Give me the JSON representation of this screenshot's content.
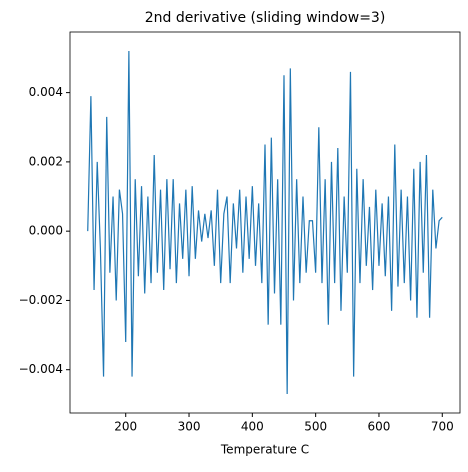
{
  "chart_data": {
    "type": "line",
    "title": "2nd derivative (sliding window=3)",
    "x_label": "Temperature C",
    "xlim": [
      112,
      728
    ],
    "ylim": [
      -0.00525,
      0.00575
    ],
    "xticks": [
      200,
      300,
      400,
      500,
      600,
      700
    ],
    "yticks": [
      {
        "value": -0.004,
        "label": "−0.004"
      },
      {
        "value": -0.002,
        "label": "−0.002"
      },
      {
        "value": 0,
        "label": "0.000"
      },
      {
        "value": 0.002,
        "label": "0.002"
      },
      {
        "value": 0.004,
        "label": "0.004"
      }
    ],
    "x": [
      140,
      145,
      150,
      155,
      160,
      165,
      170,
      175,
      180,
      185,
      190,
      195,
      200,
      205,
      210,
      215,
      220,
      225,
      230,
      235,
      240,
      245,
      250,
      255,
      260,
      265,
      270,
      275,
      280,
      285,
      290,
      295,
      300,
      305,
      310,
      315,
      320,
      325,
      330,
      335,
      340,
      345,
      350,
      355,
      360,
      365,
      370,
      375,
      380,
      385,
      390,
      395,
      400,
      405,
      410,
      415,
      420,
      425,
      430,
      435,
      440,
      445,
      450,
      455,
      460,
      465,
      470,
      475,
      480,
      485,
      490,
      495,
      500,
      505,
      510,
      515,
      520,
      525,
      530,
      535,
      540,
      545,
      550,
      555,
      560,
      565,
      570,
      575,
      580,
      585,
      590,
      595,
      600,
      605,
      610,
      615,
      620,
      625,
      630,
      635,
      640,
      645,
      650,
      655,
      660,
      665,
      670,
      675,
      680,
      685,
      690,
      695,
      700
    ],
    "series": [
      {
        "color": "#1f77b4",
        "values": [
          0.0,
          0.0039,
          -0.0017,
          0.002,
          -0.0005,
          -0.0042,
          0.0033,
          -0.0012,
          0.001,
          -0.002,
          0.0012,
          0.0005,
          -0.0032,
          0.0052,
          -0.0042,
          0.0015,
          -0.0013,
          0.0013,
          -0.0018,
          0.001,
          -0.0015,
          0.0022,
          -0.0012,
          0.0012,
          -0.0017,
          0.0015,
          -0.0011,
          0.0015,
          -0.0015,
          0.0008,
          -0.0008,
          0.0012,
          -0.0013,
          0.0013,
          -0.0008,
          0.0006,
          -0.0003,
          0.0005,
          -0.0002,
          0.0006,
          -0.001,
          0.0012,
          -0.0015,
          0.0005,
          0.001,
          -0.0015,
          0.0008,
          -0.0005,
          0.0012,
          -0.0012,
          0.001,
          -0.0008,
          0.0013,
          -0.001,
          0.0008,
          -0.0015,
          0.0025,
          -0.0027,
          0.0027,
          -0.0018,
          0.0015,
          -0.0027,
          0.0045,
          -0.0047,
          0.0047,
          -0.002,
          0.0015,
          -0.0015,
          0.001,
          -0.0012,
          0.0003,
          0.0003,
          -0.0012,
          0.003,
          -0.0015,
          0.0015,
          -0.0027,
          0.002,
          -0.0015,
          0.0024,
          -0.0023,
          0.001,
          -0.0012,
          0.0046,
          -0.0042,
          0.0018,
          -0.0015,
          0.0015,
          -0.001,
          0.0007,
          -0.0017,
          0.0012,
          -0.001,
          0.0008,
          -0.0013,
          0.001,
          -0.0023,
          0.0025,
          -0.0016,
          0.0012,
          -0.0015,
          0.001,
          -0.002,
          0.0018,
          -0.0025,
          0.002,
          -0.0012,
          0.0022,
          -0.0025,
          0.0012,
          -0.0005,
          0.0003,
          0.0004
        ]
      }
    ]
  }
}
